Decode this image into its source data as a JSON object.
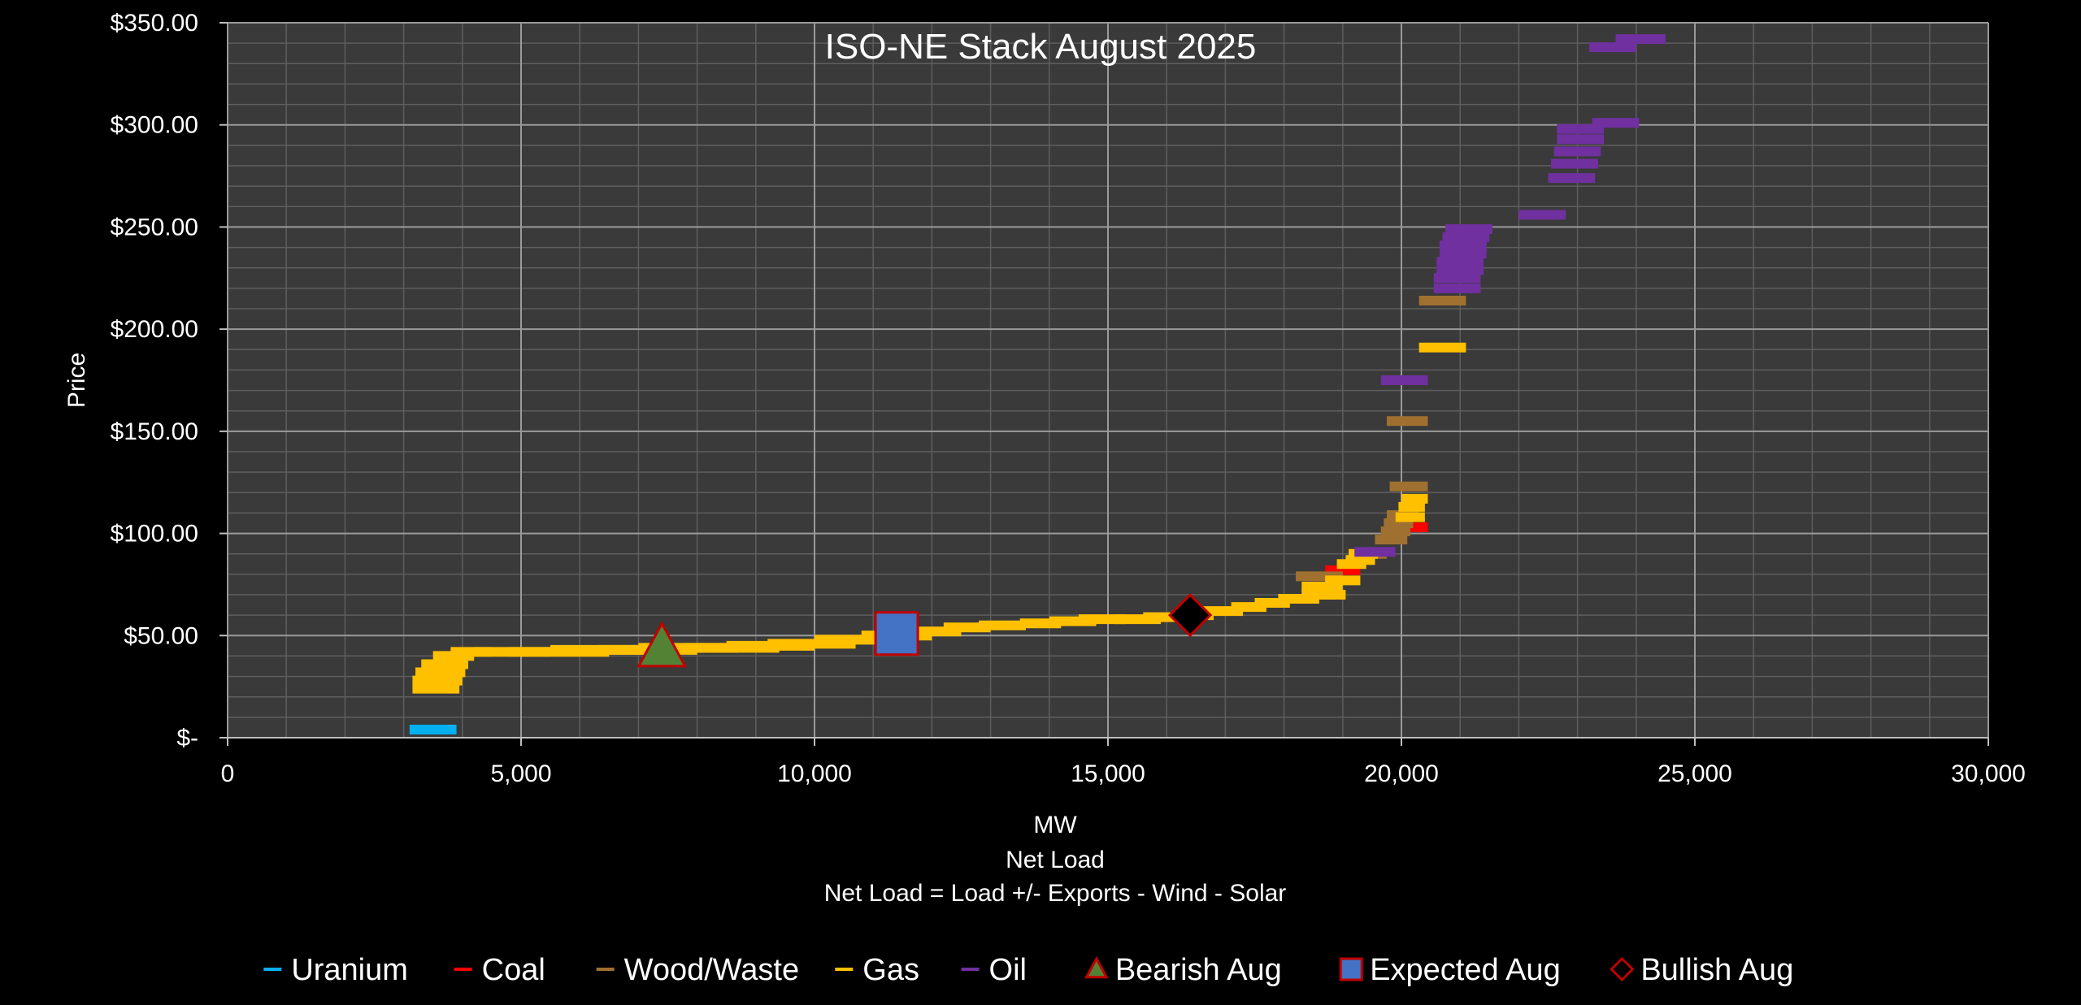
{
  "chart_data": {
    "type": "scatter",
    "title": "ISO-NE Stack August 2025",
    "xlabel_lines": [
      "MW",
      "Net Load",
      "Net Load = Load +/- Exports  - Wind - Solar"
    ],
    "ylabel": "Price",
    "xlim": [
      0,
      30000
    ],
    "ylim": [
      0,
      350
    ],
    "grid": true,
    "legend_position": "bottom",
    "plot_background": "#3a3a3a",
    "page_background": "#000000",
    "x_ticks": [
      {
        "value": 0,
        "label": "0"
      },
      {
        "value": 5000,
        "label": "5,000"
      },
      {
        "value": 10000,
        "label": "10,000"
      },
      {
        "value": 15000,
        "label": "15,000"
      },
      {
        "value": 20000,
        "label": "20,000"
      },
      {
        "value": 25000,
        "label": "25,000"
      },
      {
        "value": 30000,
        "label": "30,000"
      }
    ],
    "y_ticks": [
      {
        "value": 0,
        "label": "$-"
      },
      {
        "value": 50,
        "label": "$50.00"
      },
      {
        "value": 100,
        "label": "$100.00"
      },
      {
        "value": 150,
        "label": "$150.00"
      },
      {
        "value": 200,
        "label": "$200.00"
      },
      {
        "value": 250,
        "label": "$250.00"
      },
      {
        "value": 300,
        "label": "$300.00"
      },
      {
        "value": 350,
        "label": "$350.00"
      }
    ],
    "series": [
      {
        "name": "Uranium",
        "color": "#00b0f0",
        "kind": "segments",
        "segments": [
          [
            3100,
            3900,
            4
          ]
        ]
      },
      {
        "name": "Coal",
        "color": "#ff0000",
        "kind": "segments",
        "segments": [
          [
            18700,
            19300,
            82
          ],
          [
            20100,
            20450,
            103
          ]
        ]
      },
      {
        "name": "Wood/Waste",
        "color": "#a07030",
        "kind": "segments",
        "segments": [
          [
            18200,
            19000,
            79
          ],
          [
            19300,
            19750,
            90
          ],
          [
            19550,
            20100,
            97
          ],
          [
            19650,
            20150,
            101
          ],
          [
            19700,
            20200,
            105
          ],
          [
            19750,
            20300,
            109
          ],
          [
            19800,
            20450,
            123
          ],
          [
            19750,
            20450,
            155
          ],
          [
            20300,
            21100,
            214
          ]
        ]
      },
      {
        "name": "Gas",
        "color": "#ffc000",
        "kind": "segments",
        "segments": [
          [
            3150,
            3950,
            24
          ],
          [
            3150,
            4000,
            28
          ],
          [
            3200,
            4050,
            32
          ],
          [
            3300,
            4100,
            36
          ],
          [
            3500,
            4200,
            40
          ],
          [
            3800,
            4500,
            42
          ],
          [
            4200,
            5500,
            42
          ],
          [
            4800,
            6500,
            42
          ],
          [
            5500,
            7300,
            43
          ],
          [
            6300,
            8000,
            43
          ],
          [
            7000,
            8700,
            44
          ],
          [
            7800,
            9400,
            44
          ],
          [
            8500,
            10000,
            45
          ],
          [
            9200,
            10700,
            46
          ],
          [
            10000,
            11300,
            48
          ],
          [
            10800,
            12000,
            50
          ],
          [
            11500,
            12500,
            52
          ],
          [
            12200,
            13000,
            54
          ],
          [
            12800,
            13600,
            55
          ],
          [
            13500,
            14200,
            56
          ],
          [
            14000,
            14800,
            57
          ],
          [
            14500,
            15300,
            58
          ],
          [
            15100,
            15900,
            58
          ],
          [
            15600,
            16300,
            59
          ],
          [
            16100,
            16800,
            60
          ],
          [
            16600,
            17300,
            62
          ],
          [
            17100,
            17700,
            64
          ],
          [
            17500,
            18100,
            66
          ],
          [
            17900,
            18600,
            68
          ],
          [
            18300,
            19050,
            70
          ],
          [
            18300,
            19000,
            74
          ],
          [
            18700,
            19300,
            77
          ],
          [
            18900,
            19400,
            85
          ],
          [
            19050,
            19550,
            87
          ],
          [
            19100,
            19600,
            90
          ],
          [
            19900,
            20400,
            108
          ],
          [
            19950,
            20400,
            113
          ],
          [
            20000,
            20450,
            117
          ],
          [
            20300,
            21100,
            191
          ]
        ]
      },
      {
        "name": "Oil",
        "color": "#7030a0",
        "kind": "segments",
        "segments": [
          [
            19200,
            19900,
            91
          ],
          [
            19650,
            20450,
            175
          ],
          [
            20550,
            21350,
            220
          ],
          [
            20550,
            21350,
            225
          ],
          [
            20600,
            21400,
            229
          ],
          [
            20600,
            21400,
            233
          ],
          [
            20650,
            21450,
            237
          ],
          [
            20650,
            21450,
            241
          ],
          [
            20700,
            21500,
            245
          ],
          [
            20750,
            21550,
            249
          ],
          [
            22000,
            22800,
            256
          ],
          [
            22500,
            23300,
            274
          ],
          [
            22550,
            23350,
            281
          ],
          [
            22600,
            23400,
            287
          ],
          [
            22650,
            23450,
            293
          ],
          [
            22650,
            23450,
            298
          ],
          [
            23250,
            24050,
            301
          ],
          [
            23200,
            24000,
            338
          ],
          [
            23650,
            24500,
            342
          ]
        ]
      }
    ],
    "markers": [
      {
        "name": "Bearish Aug",
        "shape": "triangle",
        "x": 7400,
        "y": 44,
        "fill": "#548235",
        "stroke": "#c00000"
      },
      {
        "name": "Expected Aug",
        "shape": "square",
        "x": 11400,
        "y": 51,
        "fill": "#4472c4",
        "stroke": "#c00000"
      },
      {
        "name": "Bullish Aug",
        "shape": "diamond",
        "x": 16400,
        "y": 60,
        "fill": "#000000",
        "stroke": "#c00000"
      }
    ],
    "legend": [
      {
        "label": "Uranium",
        "symbol": "line",
        "color": "#00b0f0"
      },
      {
        "label": "Coal",
        "symbol": "line",
        "color": "#ff0000"
      },
      {
        "label": "Wood/Waste",
        "symbol": "line",
        "color": "#a07030"
      },
      {
        "label": "Gas",
        "symbol": "line",
        "color": "#ffc000"
      },
      {
        "label": "Oil",
        "symbol": "line",
        "color": "#7030a0"
      },
      {
        "label": "Bearish Aug",
        "symbol": "triangle",
        "color": "#548235",
        "stroke": "#c00000"
      },
      {
        "label": "Expected Aug",
        "symbol": "square",
        "color": "#4472c4",
        "stroke": "#c00000"
      },
      {
        "label": "Bullish Aug",
        "symbol": "diamond",
        "color": "#000000",
        "stroke": "#c00000"
      }
    ]
  }
}
